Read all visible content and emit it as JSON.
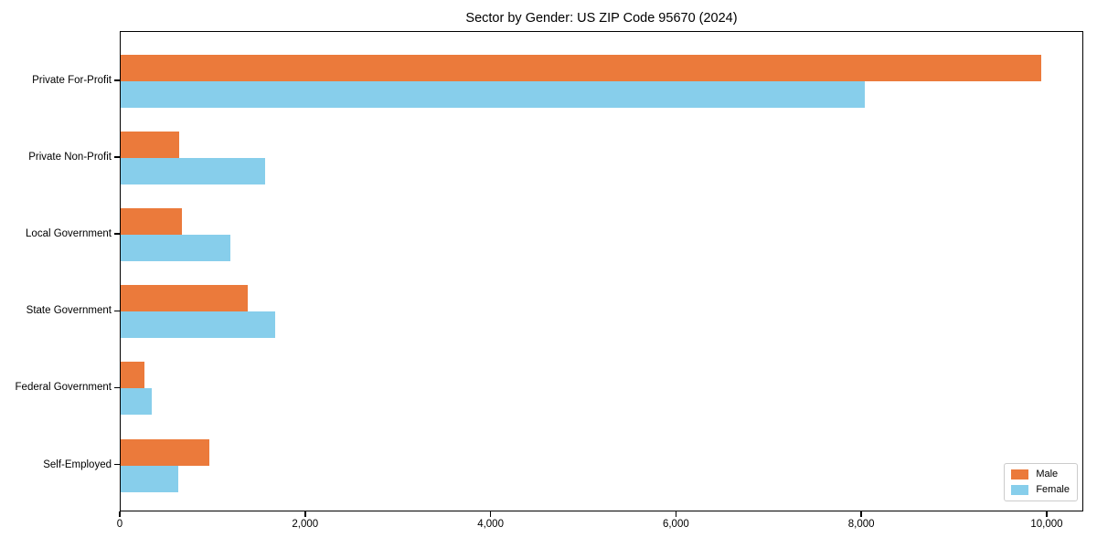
{
  "chart_data": {
    "type": "bar",
    "orientation": "horizontal",
    "title": "Sector by Gender: US ZIP Code 95670 (2024)",
    "categories": [
      "Private For-Profit",
      "Private Non-Profit",
      "Local Government",
      "State Government",
      "Federal Government",
      "Self-Employed"
    ],
    "series": [
      {
        "name": "Male",
        "color": "#EB7A3B",
        "values": [
          9930,
          630,
          660,
          1370,
          260,
          960
        ]
      },
      {
        "name": "Female",
        "color": "#87CEEB",
        "values": [
          8030,
          1560,
          1180,
          1670,
          330,
          620
        ]
      }
    ],
    "xlabel": "",
    "ylabel": "",
    "xlim": [
      0,
      10395
    ],
    "x_ticks": [
      {
        "value": 0,
        "label": "0"
      },
      {
        "value": 2000,
        "label": "2,000"
      },
      {
        "value": 4000,
        "label": "4,000"
      },
      {
        "value": 6000,
        "label": "6,000"
      },
      {
        "value": 8000,
        "label": "8,000"
      },
      {
        "value": 10000,
        "label": "10,000"
      }
    ],
    "grid": false,
    "legend_position": "lower right",
    "colors": {
      "axis": "#000000",
      "background": "#ffffff",
      "legend_border": "#cccccc"
    }
  }
}
